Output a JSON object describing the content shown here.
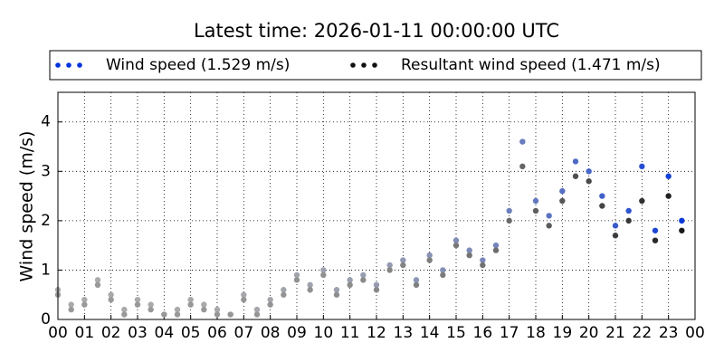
{
  "chart_data": {
    "type": "scatter",
    "title": "Latest time: 2026-01-11 00:00:00 UTC",
    "y_label": "Wind speed (m/s)",
    "x": [
      0,
      0.5,
      1,
      1.5,
      2,
      2.5,
      3,
      3.5,
      4,
      4.5,
      5,
      5.5,
      6,
      6.5,
      7,
      7.5,
      8,
      8.5,
      9,
      9.5,
      10,
      10.5,
      11,
      11.5,
      12,
      12.5,
      13,
      13.5,
      14,
      14.5,
      15,
      15.5,
      16,
      16.5,
      17,
      17.5,
      18,
      18.5,
      19,
      19.5,
      20,
      20.5,
      21,
      21.5,
      22,
      22.5,
      23,
      23.5
    ],
    "series": [
      {
        "name": "Wind speed (1.529 m/s)",
        "color": "#0033dd",
        "faded_color": "#aaaaaa",
        "values": [
          0.6,
          0.3,
          0.4,
          0.8,
          0.5,
          0.2,
          0.4,
          0.3,
          0.1,
          0.2,
          0.4,
          0.3,
          0.2,
          0.1,
          0.5,
          0.2,
          0.4,
          0.6,
          0.9,
          0.7,
          1.0,
          0.6,
          0.8,
          0.9,
          0.7,
          1.1,
          1.2,
          0.8,
          1.3,
          1.0,
          1.6,
          1.4,
          1.2,
          1.5,
          2.2,
          3.6,
          2.4,
          2.1,
          2.6,
          3.2,
          3.0,
          2.5,
          1.9,
          2.2,
          3.1,
          1.8,
          2.9,
          2.0
        ]
      },
      {
        "name": "Resultant wind speed (1.471 m/s)",
        "color": "#111111",
        "faded_color": "#999999",
        "values": [
          0.5,
          0.2,
          0.3,
          0.7,
          0.4,
          0.1,
          0.3,
          0.2,
          0.1,
          0.1,
          0.3,
          0.2,
          0.1,
          0.1,
          0.4,
          0.1,
          0.3,
          0.5,
          0.8,
          0.6,
          0.9,
          0.5,
          0.7,
          0.8,
          0.6,
          1.0,
          1.1,
          0.7,
          1.2,
          0.9,
          1.5,
          1.3,
          1.1,
          1.4,
          2.0,
          3.1,
          2.2,
          1.9,
          2.4,
          2.9,
          2.8,
          2.3,
          1.7,
          2.0,
          2.4,
          1.6,
          2.5,
          1.8
        ]
      }
    ],
    "xlim": [
      0,
      24
    ],
    "xticks": [
      {
        "value": 0,
        "label": "00"
      },
      {
        "value": 1,
        "label": "01"
      },
      {
        "value": 2,
        "label": "02"
      },
      {
        "value": 3,
        "label": "03"
      },
      {
        "value": 4,
        "label": "04"
      },
      {
        "value": 5,
        "label": "05"
      },
      {
        "value": 6,
        "label": "06"
      },
      {
        "value": 7,
        "label": "07"
      },
      {
        "value": 8,
        "label": "08"
      },
      {
        "value": 9,
        "label": "09"
      },
      {
        "value": 10,
        "label": "10"
      },
      {
        "value": 11,
        "label": "11"
      },
      {
        "value": 12,
        "label": "12"
      },
      {
        "value": 13,
        "label": "13"
      },
      {
        "value": 14,
        "label": "14"
      },
      {
        "value": 15,
        "label": "15"
      },
      {
        "value": 16,
        "label": "16"
      },
      {
        "value": 17,
        "label": "17"
      },
      {
        "value": 18,
        "label": "18"
      },
      {
        "value": 19,
        "label": "19"
      },
      {
        "value": 20,
        "label": "20"
      },
      {
        "value": 21,
        "label": "21"
      },
      {
        "value": 22,
        "label": "22"
      },
      {
        "value": 23,
        "label": "23"
      },
      {
        "value": 24,
        "label": "00"
      }
    ],
    "ylim": [
      0,
      4.6
    ],
    "yticks": [
      0,
      1,
      2,
      3,
      4
    ],
    "grid": true
  }
}
